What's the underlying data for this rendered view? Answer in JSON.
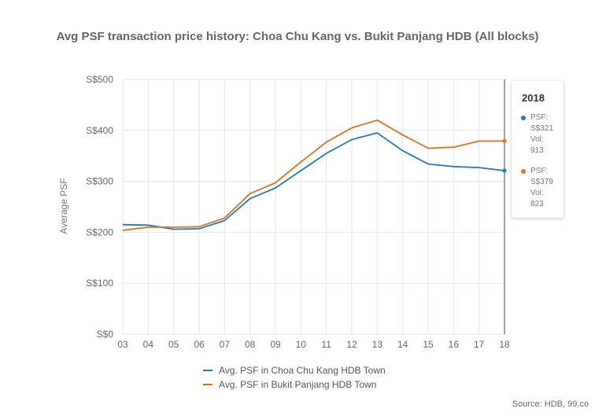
{
  "title": "Avg PSF transaction price history: Choa Chu Kang vs. Bukit Panjang HDB (All blocks)",
  "source": "Source: HDB, 99.co",
  "colors": {
    "series1": "#1f78c1",
    "series2": "#d9731f",
    "grid": "#e6e6e6"
  },
  "tooltip": {
    "year": "2018",
    "entries": [
      {
        "psf_label": "PSF:",
        "psf_value": "S$321",
        "vol_label": "Vol:",
        "vol_value": "913"
      },
      {
        "psf_label": "PSF:",
        "psf_value": "S$379",
        "vol_label": "Vol:",
        "vol_value": "823"
      }
    ]
  },
  "legend": [
    "Avg. PSF in Choa Chu Kang HDB Town",
    "Avg. PSF in Bukit Panjang HDB Town"
  ],
  "chart_data": {
    "type": "line",
    "title": "Avg PSF transaction price history: Choa Chu Kang vs. Bukit Panjang HDB (All blocks)",
    "ylabel": "Average PSF",
    "xlabel": "",
    "ylim": [
      0,
      500
    ],
    "y_ticks": [
      0,
      100,
      200,
      300,
      400,
      500
    ],
    "y_tick_labels": [
      "S$0",
      "S$100",
      "S$200",
      "S$300",
      "S$400",
      "S$500"
    ],
    "categories": [
      "03",
      "04",
      "05",
      "06",
      "07",
      "08",
      "09",
      "10",
      "11",
      "12",
      "13",
      "14",
      "15",
      "16",
      "17",
      "18"
    ],
    "grid": true,
    "legend_position": "bottom",
    "series": [
      {
        "name": "Avg. PSF in Choa Chu Kang HDB Town",
        "values": [
          215,
          214,
          206,
          207,
          223,
          266,
          287,
          321,
          355,
          382,
          395,
          360,
          334,
          329,
          327,
          321
        ]
      },
      {
        "name": "Avg. PSF in Bukit Panjang HDB Town",
        "values": [
          204,
          210,
          210,
          211,
          228,
          276,
          297,
          338,
          377,
          405,
          420,
          391,
          365,
          367,
          379,
          379
        ]
      }
    ]
  }
}
